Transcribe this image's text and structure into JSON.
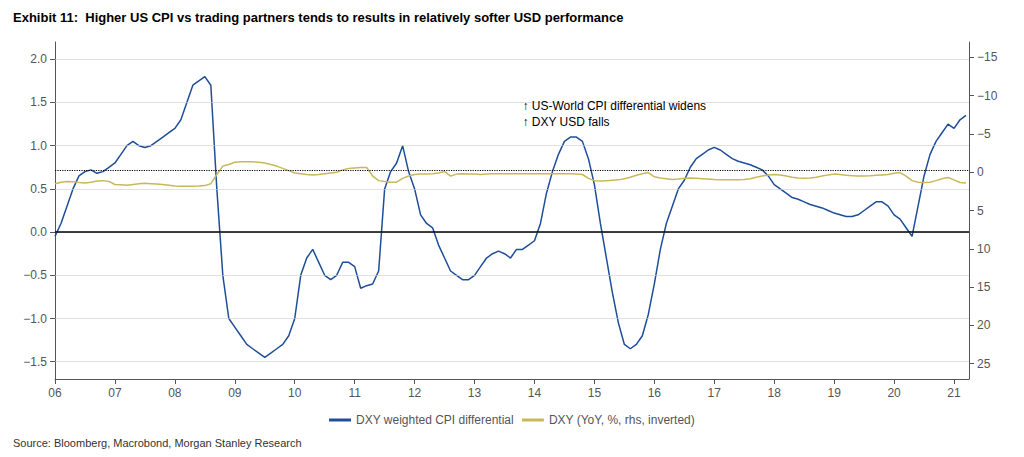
{
  "chart_data": {
    "type": "line",
    "title": "Exhibit 11:  Higher US CPI vs trading partners tends to results in relatively softer USD performance",
    "source": "Source: Bloomberg, Macrobond, Morgan Stanley Research",
    "annotations": [
      {
        "text": "↑ US-World CPI differential widens\n↑ DXY USD falls",
        "x": 2013.8,
        "y": 1.55
      }
    ],
    "x": [
      2006.0,
      2006.1,
      2006.2,
      2006.3,
      2006.4,
      2006.5,
      2006.6,
      2006.7,
      2006.8,
      2006.9,
      2007.0,
      2007.1,
      2007.2,
      2007.3,
      2007.4,
      2007.5,
      2007.6,
      2007.7,
      2007.8,
      2007.9,
      2008.0,
      2008.1,
      2008.2,
      2008.3,
      2008.4,
      2008.5,
      2008.6,
      2008.7,
      2008.8,
      2008.9,
      2009.0,
      2009.1,
      2009.2,
      2009.3,
      2009.4,
      2009.5,
      2009.6,
      2009.7,
      2009.8,
      2009.9,
      2010.0,
      2010.1,
      2010.2,
      2010.3,
      2010.4,
      2010.5,
      2010.6,
      2010.7,
      2010.8,
      2010.9,
      2011.0,
      2011.1,
      2011.2,
      2011.3,
      2011.4,
      2011.5,
      2011.6,
      2011.7,
      2011.8,
      2011.9,
      2012.0,
      2012.1,
      2012.2,
      2012.3,
      2012.4,
      2012.5,
      2012.6,
      2012.7,
      2012.8,
      2012.9,
      2013.0,
      2013.1,
      2013.2,
      2013.3,
      2013.4,
      2013.5,
      2013.6,
      2013.7,
      2013.8,
      2013.9,
      2014.0,
      2014.1,
      2014.2,
      2014.3,
      2014.4,
      2014.5,
      2014.6,
      2014.7,
      2014.8,
      2014.9,
      2015.0,
      2015.1,
      2015.2,
      2015.3,
      2015.4,
      2015.5,
      2015.6,
      2015.7,
      2015.8,
      2015.9,
      2016.0,
      2016.1,
      2016.2,
      2016.3,
      2016.4,
      2016.5,
      2016.6,
      2016.7,
      2016.8,
      2016.9,
      2017.0,
      2017.1,
      2017.2,
      2017.3,
      2017.4,
      2017.5,
      2017.6,
      2017.7,
      2017.8,
      2017.9,
      2018.0,
      2018.1,
      2018.2,
      2018.3,
      2018.4,
      2018.5,
      2018.6,
      2018.7,
      2018.8,
      2018.9,
      2019.0,
      2019.1,
      2019.2,
      2019.3,
      2019.4,
      2019.5,
      2019.6,
      2019.7,
      2019.8,
      2019.9,
      2020.0,
      2020.1,
      2020.2,
      2020.3,
      2020.4,
      2020.5,
      2020.6,
      2020.7,
      2020.8,
      2020.9,
      2021.0,
      2021.1,
      2021.2
    ],
    "xlim": [
      2006.0,
      2021.25
    ],
    "xticks": [
      {
        "value": 2006,
        "label": "06"
      },
      {
        "value": 2007,
        "label": "07"
      },
      {
        "value": 2008,
        "label": "08"
      },
      {
        "value": 2009,
        "label": "09"
      },
      {
        "value": 2010,
        "label": "10"
      },
      {
        "value": 2011,
        "label": "11"
      },
      {
        "value": 2012,
        "label": "12"
      },
      {
        "value": 2013,
        "label": "13"
      },
      {
        "value": 2014,
        "label": "14"
      },
      {
        "value": 2015,
        "label": "15"
      },
      {
        "value": 2016,
        "label": "16"
      },
      {
        "value": 2017,
        "label": "17"
      },
      {
        "value": 2018,
        "label": "18"
      },
      {
        "value": 2019,
        "label": "19"
      },
      {
        "value": 2020,
        "label": "20"
      },
      {
        "value": 2021,
        "label": "21"
      }
    ],
    "ylim": [
      -1.7,
      2.2
    ],
    "yticks": [
      {
        "value": -1.5,
        "label": "−1.5"
      },
      {
        "value": -1.0,
        "label": "−1.0"
      },
      {
        "value": -0.5,
        "label": "−0.5"
      },
      {
        "value": 0.0,
        "label": "0.0"
      },
      {
        "value": 0.5,
        "label": "0.5"
      },
      {
        "value": 1.0,
        "label": "1.0"
      },
      {
        "value": 1.5,
        "label": "1.5"
      },
      {
        "value": 2.0,
        "label": "2.0"
      }
    ],
    "y2lim": [
      27,
      -17
    ],
    "y2ticks": [
      25,
      20,
      15,
      10,
      5,
      0,
      {
        "value": -5,
        "label": "−5"
      },
      {
        "value": -10,
        "label": "−10"
      },
      {
        "value": -15,
        "label": "−15"
      }
    ],
    "grid": true,
    "legend": "bottom",
    "hlines": [
      {
        "y": 0,
        "color": "black",
        "line_style": "solid"
      },
      {
        "y": 0.72,
        "color": "black",
        "line_style": "dotted"
      }
    ],
    "series": [
      {
        "name": "DXY weighted CPI differential",
        "color": "#1F4E99",
        "values": [
          -0.05,
          0.1,
          0.3,
          0.5,
          0.65,
          0.7,
          0.72,
          0.68,
          0.7,
          0.75,
          0.8,
          0.9,
          1.0,
          1.05,
          1.0,
          0.98,
          1.0,
          1.05,
          1.1,
          1.15,
          1.2,
          1.3,
          1.5,
          1.7,
          1.75,
          1.8,
          1.7,
          0.5,
          -0.5,
          -1.0,
          -1.1,
          -1.2,
          -1.3,
          -1.35,
          -1.4,
          -1.45,
          -1.4,
          -1.35,
          -1.3,
          -1.2,
          -1.0,
          -0.5,
          -0.3,
          -0.2,
          -0.35,
          -0.5,
          -0.55,
          -0.5,
          -0.35,
          -0.35,
          -0.4,
          -0.65,
          -0.62,
          -0.6,
          -0.45,
          0.5,
          0.7,
          0.8,
          1.0,
          0.7,
          0.5,
          0.2,
          0.1,
          0.05,
          -0.15,
          -0.3,
          -0.45,
          -0.5,
          -0.55,
          -0.55,
          -0.5,
          -0.4,
          -0.3,
          -0.25,
          -0.22,
          -0.25,
          -0.3,
          -0.2,
          -0.2,
          -0.15,
          -0.1,
          0.1,
          0.45,
          0.7,
          0.9,
          1.05,
          1.1,
          1.1,
          1.05,
          0.85,
          0.55,
          0.1,
          -0.3,
          -0.7,
          -1.05,
          -1.3,
          -1.35,
          -1.3,
          -1.2,
          -0.95,
          -0.6,
          -0.2,
          0.1,
          0.3,
          0.5,
          0.6,
          0.75,
          0.85,
          0.9,
          0.95,
          0.98,
          0.95,
          0.9,
          0.85,
          0.82,
          0.8,
          0.78,
          0.75,
          0.72,
          0.65,
          0.55,
          0.5,
          0.45,
          0.4,
          0.38,
          0.35,
          0.32,
          0.3,
          0.28,
          0.25,
          0.22,
          0.2,
          0.18,
          0.18,
          0.2,
          0.25,
          0.3,
          0.35,
          0.35,
          0.3,
          0.2,
          0.15,
          0.05,
          -0.05,
          0.3,
          0.65,
          0.9,
          1.05,
          1.15,
          1.25,
          1.2,
          1.3,
          1.35
        ]
      },
      {
        "name": "DXY (YoY, %, rhs, inverted)",
        "color": "#C8B85A",
        "axis": "y2",
        "values": [
          1.5,
          1.3,
          1.2,
          1.25,
          1.35,
          1.4,
          1.3,
          1.15,
          1.1,
          1.2,
          1.6,
          1.65,
          1.7,
          1.6,
          1.5,
          1.45,
          1.5,
          1.55,
          1.6,
          1.7,
          1.8,
          1.82,
          1.85,
          1.82,
          1.8,
          1.75,
          1.5,
          0.3,
          -0.8,
          -1.0,
          -1.3,
          -1.35,
          -1.38,
          -1.35,
          -1.3,
          -1.2,
          -1.0,
          -0.8,
          -0.5,
          -0.2,
          0.1,
          0.2,
          0.3,
          0.35,
          0.3,
          0.2,
          0.1,
          0.0,
          -0.3,
          -0.5,
          -0.55,
          -0.6,
          -0.62,
          0.5,
          1.1,
          1.2,
          1.3,
          1.3,
          0.8,
          0.5,
          0.3,
          0.25,
          0.25,
          0.2,
          0.1,
          -0.1,
          0.5,
          0.25,
          0.2,
          0.25,
          0.25,
          0.3,
          0.25,
          0.2,
          0.2,
          0.2,
          0.2,
          0.2,
          0.2,
          0.2,
          0.2,
          0.2,
          0.2,
          0.2,
          0.2,
          0.2,
          0.2,
          0.25,
          0.3,
          0.8,
          1.1,
          1.15,
          1.1,
          1.05,
          1.0,
          0.85,
          0.65,
          0.4,
          0.2,
          0.05,
          0.6,
          0.75,
          0.85,
          0.95,
          0.9,
          0.8,
          0.75,
          0.8,
          0.85,
          0.9,
          0.95,
          0.98,
          1.0,
          1.0,
          0.98,
          0.95,
          0.85,
          0.65,
          0.5,
          0.38,
          0.3,
          0.38,
          0.5,
          0.65,
          0.75,
          0.78,
          0.75,
          0.65,
          0.5,
          0.35,
          0.25,
          0.3,
          0.4,
          0.45,
          0.5,
          0.48,
          0.45,
          0.4,
          0.35,
          0.3,
          0.15,
          0.05,
          0.5,
          1.1,
          1.3,
          1.35,
          1.3,
          1.1,
          0.85,
          0.7,
          1.0,
          1.35,
          1.4
        ]
      }
    ]
  }
}
